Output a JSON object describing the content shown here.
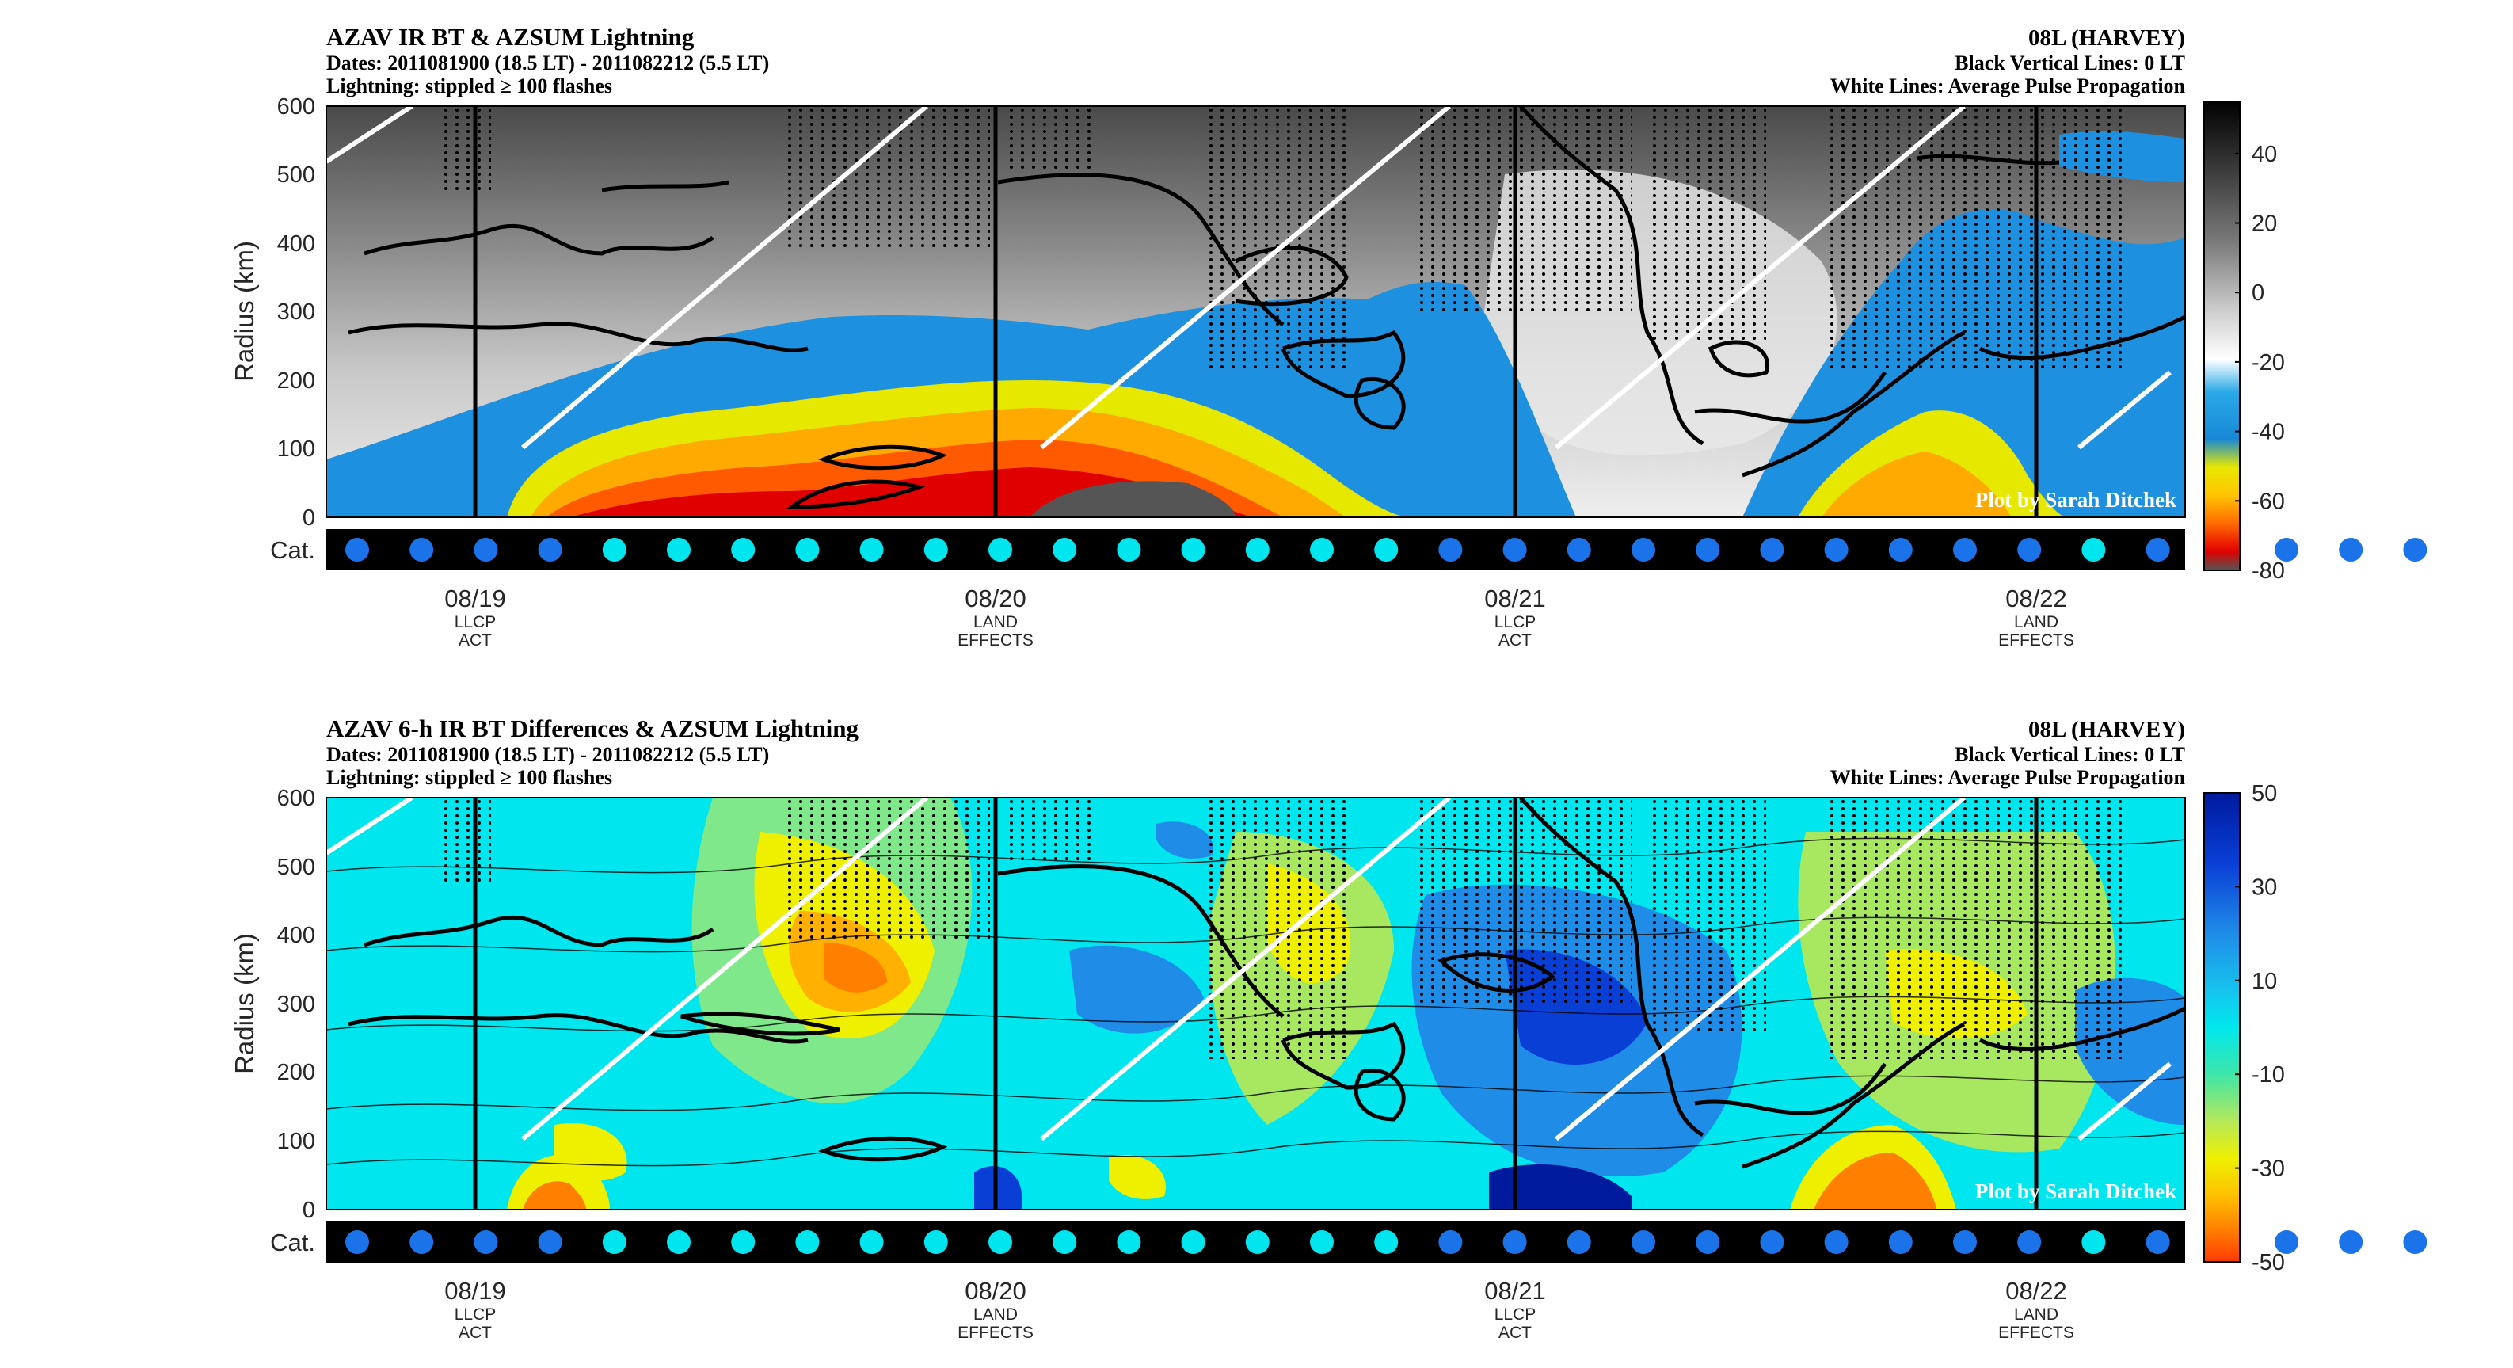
{
  "panels": [
    {
      "id": "bt",
      "title": "AZAV IR BT & AZSUM Lightning",
      "dates": "Dates: 2011081900 (18.5 LT) - 2011082212 (5.5 LT)",
      "lightning": "Lightning: stippled ≥ 100 flashes",
      "storm": "08L (HARVEY)",
      "vlines_label": "Black Vertical Lines: 0 LT",
      "wlines_label": "White Lines: Average Pulse Propagation",
      "credit": "Plot by Sarah Ditchek",
      "ylabel": "Radius (km)",
      "cat_label": "Cat."
    },
    {
      "id": "diff",
      "title": "AZAV 6-h IR BT Differences & AZSUM Lightning",
      "dates": "Dates: 2011081900 (18.5 LT) - 2011082212 (5.5 LT)",
      "lightning": "Lightning: stippled ≥ 100 flashes",
      "storm": "08L (HARVEY)",
      "vlines_label": "Black Vertical Lines: 0 LT",
      "wlines_label": "White Lines: Average Pulse Propagation",
      "credit": "Plot by Sarah Ditchek",
      "ylabel": "Radius (km)",
      "cat_label": "Cat."
    }
  ],
  "x_ticks": [
    {
      "date": "08/19",
      "line1": "LLCP",
      "line2": "ACT"
    },
    {
      "date": "08/20",
      "line1": "LAND",
      "line2": "EFFECTS"
    },
    {
      "date": "08/21",
      "line1": "LLCP",
      "line2": "ACT"
    },
    {
      "date": "08/22",
      "line1": "LAND",
      "line2": "EFFECTS"
    }
  ],
  "chart_data": [
    {
      "type": "heatmap",
      "title": "AZAV IR BT & AZSUM Lightning",
      "xlabel": "",
      "ylabel": "Radius (km)",
      "x_range": [
        "2011-08-18 21:00",
        "2011-08-22 12:00"
      ],
      "ylim": [
        0,
        600
      ],
      "y_ticks": [
        0,
        100,
        200,
        300,
        400,
        500,
        600
      ],
      "x_ticks": [
        "08/19",
        "08/20",
        "08/21",
        "08/22"
      ],
      "colorbar": {
        "min": -80,
        "max": 55,
        "ticks": [
          40,
          20,
          0,
          -20,
          -40,
          -60,
          -80
        ],
        "colormap": "gray-to-blue-yellow-red"
      },
      "vertical_lines_0LT_days": [
        0.5,
        1.5,
        2.5,
        3.5
      ],
      "white_lines": [
        {
          "x": [
            -0.45,
            -0.05
          ],
          "y": [
            520,
            600
          ]
        },
        {
          "x": [
            0.8,
            2.1
          ],
          "y": [
            100,
            600
          ]
        },
        {
          "x": [
            1.8,
            3.1
          ],
          "y": [
            100,
            600
          ]
        },
        {
          "x": [
            2.8,
            4.0
          ],
          "y": [
            100,
            580
          ]
        },
        {
          "x": [
            3.55,
            3.8
          ],
          "y": [
            100,
            200
          ]
        }
      ],
      "category_dots": [
        "ts",
        "ts",
        "ts",
        "ts",
        "td",
        "td",
        "td",
        "td",
        "td",
        "td",
        "td",
        "td",
        "td",
        "td",
        "td",
        "td",
        "td",
        "ts",
        "ts",
        "ts",
        "ts",
        "ts",
        "ts",
        "ts",
        "ts",
        "ts",
        "ts",
        "td",
        "ts",
        "ts",
        "ts",
        "ts",
        "ts"
      ]
    },
    {
      "type": "heatmap",
      "title": "AZAV 6-h IR BT Differences & AZSUM Lightning",
      "xlabel": "",
      "ylabel": "Radius (km)",
      "x_range": [
        "2011-08-18 21:00",
        "2011-08-22 12:00"
      ],
      "ylim": [
        0,
        600
      ],
      "y_ticks": [
        0,
        100,
        200,
        300,
        400,
        500,
        600
      ],
      "x_ticks": [
        "08/19",
        "08/20",
        "08/21",
        "08/22"
      ],
      "colorbar": {
        "min": -50,
        "max": 50,
        "ticks": [
          50,
          30,
          10,
          -10,
          -30,
          -50
        ],
        "colormap": "blue-cyan-green-yellow-red"
      },
      "vertical_lines_0LT_days": [
        0.5,
        1.5,
        2.5,
        3.5
      ],
      "white_lines": [
        {
          "x": [
            -0.45,
            -0.05
          ],
          "y": [
            520,
            600
          ]
        },
        {
          "x": [
            0.8,
            2.1
          ],
          "y": [
            100,
            600
          ]
        },
        {
          "x": [
            1.8,
            3.1
          ],
          "y": [
            100,
            600
          ]
        },
        {
          "x": [
            2.8,
            4.0
          ],
          "y": [
            100,
            580
          ]
        },
        {
          "x": [
            3.55,
            3.8
          ],
          "y": [
            100,
            200
          ]
        }
      ],
      "category_dots": [
        "ts",
        "ts",
        "ts",
        "ts",
        "td",
        "td",
        "td",
        "td",
        "td",
        "td",
        "td",
        "td",
        "td",
        "td",
        "td",
        "td",
        "td",
        "ts",
        "ts",
        "ts",
        "ts",
        "ts",
        "ts",
        "ts",
        "ts",
        "ts",
        "ts",
        "td",
        "ts",
        "ts",
        "ts",
        "ts",
        "ts"
      ]
    }
  ],
  "colors": {
    "ts_dot": "#1a73e8",
    "td_dot": "#00e5ee",
    "cat_bar": "#000000",
    "white_line": "#ffffff"
  }
}
